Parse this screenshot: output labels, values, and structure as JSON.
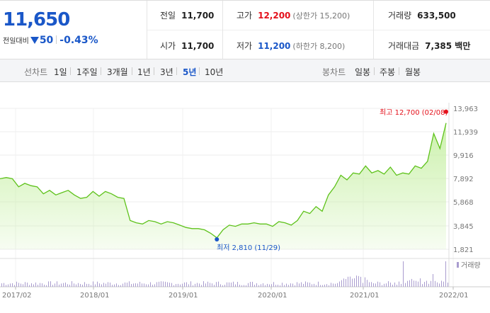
{
  "quote": {
    "price": "11,650",
    "change_label": "전일대비",
    "change_value": "50",
    "change_pct": "-0.43%"
  },
  "stats": {
    "prev_close": {
      "label": "전일",
      "value": "11,700"
    },
    "high": {
      "label": "고가",
      "value": "12,200",
      "sub": "(상한가 15,200)"
    },
    "volume": {
      "label": "거래량",
      "value": "633,500"
    },
    "open": {
      "label": "시가",
      "value": "11,700"
    },
    "low": {
      "label": "저가",
      "value": "11,200",
      "sub": "(하한가 8,200)"
    },
    "amount": {
      "label": "거래대금",
      "value": "7,385 백만"
    }
  },
  "tabs": {
    "line_chart_label": "선차트",
    "periods": [
      "1일",
      "1주일",
      "3개월",
      "1년",
      "3년",
      "5년",
      "10년"
    ],
    "active_period": "5년",
    "candle_chart_label": "봉차트",
    "candle_periods": [
      "일봉",
      "주봉",
      "월봉"
    ]
  },
  "colors": {
    "accent": "#1a57c8",
    "up": "#e4101b",
    "line": "#5ec21b",
    "area": "#c9f0a8"
  },
  "chart_data": {
    "type": "area",
    "y_ticks": [
      "13,963",
      "11,939",
      "9,916",
      "7,892",
      "5,868",
      "3,845",
      "1,821"
    ],
    "ylim": [
      1821,
      13963
    ],
    "x_ticks": [
      "2017/02",
      "2018/01",
      "2019/01",
      "2020/01",
      "2021/01",
      "2022/01"
    ],
    "high_annotation": "최고 12,700 (02/08)",
    "low_annotation": "최저 2,810 (11/29)",
    "volume_label": "거래량",
    "series": [
      {
        "values": [
          7900,
          8000,
          7900,
          7200,
          7500,
          7300,
          7200,
          6600,
          6900,
          6500,
          6700,
          6900,
          6500,
          6200,
          6300,
          6800,
          6400,
          6800,
          6600,
          6300,
          6200,
          4300,
          4100,
          4000,
          4300,
          4200,
          4000,
          4200,
          4100,
          3900,
          3700,
          3600,
          3600,
          3500,
          3200,
          2810,
          3500,
          3900,
          3800,
          4000,
          4000,
          4100,
          4000,
          4000,
          3800,
          4200,
          4100,
          3900,
          4300,
          5100,
          4900,
          5500,
          5100,
          6500,
          7200,
          8200,
          7800,
          8400,
          8300,
          9000,
          8400,
          8600,
          8300,
          8900,
          8200,
          8400,
          8300,
          9000,
          8800,
          9400,
          11800,
          10500,
          12700
        ]
      }
    ]
  }
}
